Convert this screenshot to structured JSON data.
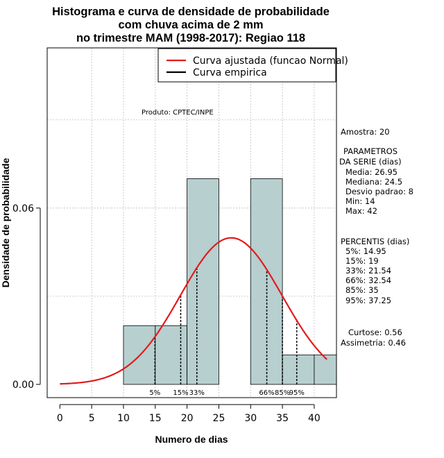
{
  "chart_data": {
    "type": "histogram",
    "title": [
      "Histograma e curva de densidade de probabilidade",
      "com chuva acima de 2 mm",
      "no trimestre MAM (1998-2017): Regiao 118"
    ],
    "xlabel": "Numero de dias",
    "ylabel": "Densidade de probabilidade",
    "xlim": [
      -2,
      43.5
    ],
    "ylim": [
      -0.0045,
      0.1145
    ],
    "x_ticks": [
      0,
      5,
      10,
      15,
      20,
      25,
      30,
      35,
      40
    ],
    "y_ticks": [
      0.0,
      0.06
    ],
    "y_tick_labels": [
      "0.00",
      "0.06"
    ],
    "bins": [
      {
        "from": 10,
        "to": 15,
        "density": 0.02
      },
      {
        "from": 15,
        "to": 20,
        "density": 0.02
      },
      {
        "from": 20,
        "to": 25,
        "density": 0.07
      },
      {
        "from": 25,
        "to": 30,
        "density": 0.0
      },
      {
        "from": 30,
        "to": 35,
        "density": 0.07
      },
      {
        "from": 35,
        "to": 40,
        "density": 0.01
      },
      {
        "from": 40,
        "to": 45,
        "density": 0.01
      }
    ],
    "normal_curve": {
      "mean": 26.95,
      "sd": 8,
      "from": 0,
      "to": 42
    },
    "percentiles": [
      {
        "label": "5%",
        "value": 14.95
      },
      {
        "label": "15%",
        "value": 19
      },
      {
        "label": "33%",
        "value": 21.54
      },
      {
        "label": "66%",
        "value": 32.54
      },
      {
        "label": "85%",
        "value": 35
      },
      {
        "label": "95%",
        "value": 37.25
      }
    ],
    "legend": {
      "placement": "top-right",
      "entries": [
        {
          "label": "Curva ajustada (funcao Normal)",
          "color": "#e31a1c"
        },
        {
          "label": "Curva empirica",
          "color": "#000000"
        }
      ]
    },
    "annotation": "Produto: CPTEC/INPE"
  },
  "stats": {
    "sample": "Amostra: 20",
    "param_heading": [
      "PARAMETROS",
      "DA SERIE (dias)"
    ],
    "params": [
      "Media: 26.95",
      "Mediana: 24.5",
      "Desvio padrao: 8",
      "Min: 14",
      "Max: 42"
    ],
    "percentiles_heading": "PERCENTIS (dias)",
    "percentiles": [
      "5%: 14.95",
      "15%: 19",
      "33%: 21.54",
      "66%: 32.54",
      "85%: 35",
      "95%: 37.25"
    ],
    "shape": [
      "Curtose: 0.56",
      "Assimetria: 0.46"
    ]
  },
  "colors": {
    "bar_fill": "#b7cfcf",
    "bar_stroke": "#000000",
    "curve": "#e31a1c",
    "grid": "#bdbdbd"
  }
}
